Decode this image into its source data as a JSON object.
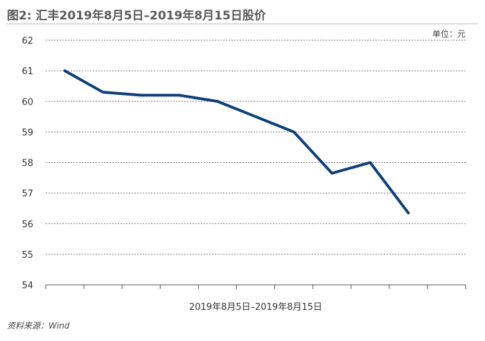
{
  "header": {
    "title": "图2: 汇丰2019年8月5日–2019年8月15日股价",
    "unit": "单位：元"
  },
  "footer": {
    "source": "资料来源：Wind"
  },
  "colors": {
    "line": "#0d3f7a",
    "grid": "#777777",
    "axis": "#555555",
    "text": "#333333"
  },
  "chart_data": {
    "type": "line",
    "title": "",
    "xlabel": "2019年8月5日–2019年8月15日",
    "ylabel": "",
    "ylim": [
      54,
      62
    ],
    "yticks": [
      54,
      55,
      56,
      57,
      58,
      59,
      60,
      61,
      62
    ],
    "grid": true,
    "series": [
      {
        "values": [
          61.0,
          60.3,
          60.2,
          60.2,
          60.0,
          59.5,
          59.0,
          57.65,
          58.0,
          56.35
        ]
      }
    ]
  }
}
